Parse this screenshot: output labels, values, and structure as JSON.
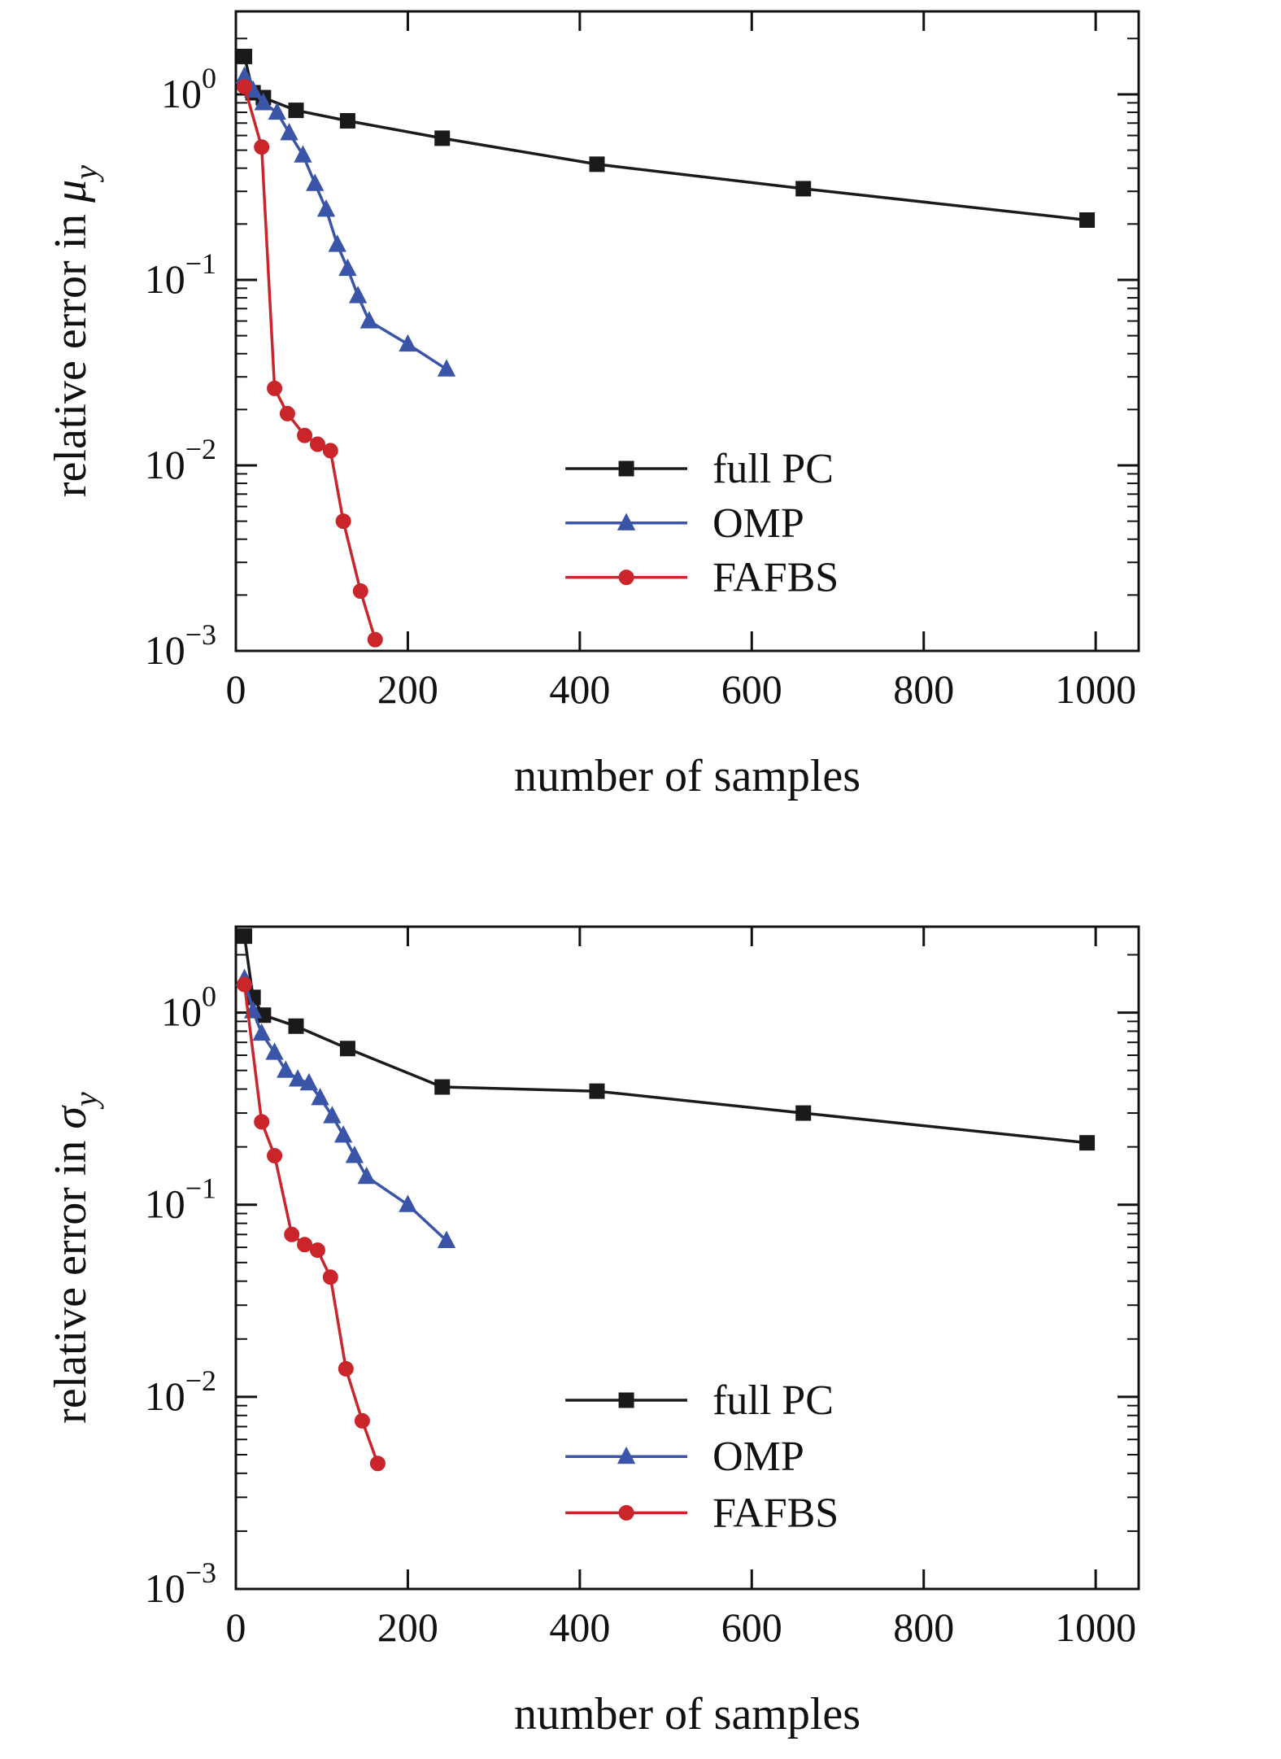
{
  "figure": {
    "background": "#ffffff",
    "axis_color": "#111111",
    "xlabel": "number of samples",
    "legend_entries": [
      "full PC",
      "OMP",
      "FAFBS"
    ],
    "series_colors": {
      "full_pc": "#1a1a1a",
      "omp": "#3a55a8",
      "fafbs": "#c9252b"
    }
  },
  "chart_data": [
    {
      "type": "line",
      "title": "",
      "xlabel": "number of samples",
      "ylabel": {
        "text": "relative error in ",
        "symbol": "μ",
        "subscript": "y"
      },
      "x_axis": {
        "lim": [
          0,
          1050
        ],
        "ticks": [
          0,
          200,
          400,
          600,
          800,
          1000
        ]
      },
      "y_axis": {
        "scale": "log",
        "lim": [
          0.001,
          2.8
        ],
        "major_ticks": [
          {
            "value": 1,
            "base": "10",
            "exp": "0"
          },
          {
            "value": 0.1,
            "base": "10",
            "exp": "−1"
          },
          {
            "value": 0.01,
            "base": "10",
            "exp": "−2"
          },
          {
            "value": 0.001,
            "base": "10",
            "exp": "−3"
          }
        ]
      },
      "grid": false,
      "legend": {
        "position": "inside-lower-right"
      },
      "series": [
        {
          "name": "full PC",
          "color": "#1a1a1a",
          "marker": "square",
          "points": [
            [
              10,
              1.6
            ],
            [
              20,
              1.02
            ],
            [
              32,
              0.96
            ],
            [
              70,
              0.82
            ],
            [
              130,
              0.72
            ],
            [
              240,
              0.58
            ],
            [
              420,
              0.42
            ],
            [
              660,
              0.31
            ],
            [
              990,
              0.21
            ]
          ]
        },
        {
          "name": "OMP",
          "color": "#3a55a8",
          "marker": "triangle",
          "points": [
            [
              10,
              1.25
            ],
            [
              20,
              1.05
            ],
            [
              32,
              0.9
            ],
            [
              48,
              0.8
            ],
            [
              62,
              0.62
            ],
            [
              78,
              0.47
            ],
            [
              92,
              0.33
            ],
            [
              105,
              0.24
            ],
            [
              118,
              0.155
            ],
            [
              130,
              0.115
            ],
            [
              142,
              0.082
            ],
            [
              155,
              0.06
            ],
            [
              200,
              0.045
            ],
            [
              245,
              0.033
            ]
          ]
        },
        {
          "name": "FAFBS",
          "color": "#c9252b",
          "marker": "circle",
          "points": [
            [
              10,
              1.1
            ],
            [
              30,
              0.52
            ],
            [
              45,
              0.026
            ],
            [
              60,
              0.019
            ],
            [
              80,
              0.0145
            ],
            [
              95,
              0.013
            ],
            [
              110,
              0.012
            ],
            [
              125,
              0.005
            ],
            [
              145,
              0.0021
            ],
            [
              162,
              0.00115
            ]
          ]
        }
      ]
    },
    {
      "type": "line",
      "title": "",
      "xlabel": "number of samples",
      "ylabel": {
        "text": "relative error in ",
        "symbol": "σ",
        "subscript": "y"
      },
      "x_axis": {
        "lim": [
          0,
          1050
        ],
        "ticks": [
          0,
          200,
          400,
          600,
          800,
          1000
        ]
      },
      "y_axis": {
        "scale": "log",
        "lim": [
          0.001,
          2.8
        ],
        "major_ticks": [
          {
            "value": 1,
            "base": "10",
            "exp": "0"
          },
          {
            "value": 0.1,
            "base": "10",
            "exp": "−1"
          },
          {
            "value": 0.01,
            "base": "10",
            "exp": "−2"
          },
          {
            "value": 0.001,
            "base": "10",
            "exp": "−3"
          }
        ]
      },
      "grid": false,
      "legend": {
        "position": "inside-lower-right"
      },
      "series": [
        {
          "name": "full PC",
          "color": "#1a1a1a",
          "marker": "square",
          "points": [
            [
              10,
              2.5
            ],
            [
              20,
              1.2
            ],
            [
              32,
              0.97
            ],
            [
              70,
              0.85
            ],
            [
              130,
              0.65
            ],
            [
              240,
              0.41
            ],
            [
              420,
              0.39
            ],
            [
              660,
              0.3
            ],
            [
              990,
              0.21
            ]
          ]
        },
        {
          "name": "OMP",
          "color": "#3a55a8",
          "marker": "triangle",
          "points": [
            [
              10,
              1.5
            ],
            [
              20,
              1.02
            ],
            [
              30,
              0.78
            ],
            [
              45,
              0.62
            ],
            [
              58,
              0.5
            ],
            [
              72,
              0.45
            ],
            [
              85,
              0.43
            ],
            [
              98,
              0.36
            ],
            [
              112,
              0.29
            ],
            [
              125,
              0.23
            ],
            [
              138,
              0.18
            ],
            [
              152,
              0.14
            ],
            [
              200,
              0.1
            ],
            [
              245,
              0.065
            ]
          ]
        },
        {
          "name": "FAFBS",
          "color": "#c9252b",
          "marker": "circle",
          "points": [
            [
              10,
              1.4
            ],
            [
              30,
              0.27
            ],
            [
              45,
              0.18
            ],
            [
              65,
              0.07
            ],
            [
              80,
              0.062
            ],
            [
              95,
              0.058
            ],
            [
              110,
              0.042
            ],
            [
              128,
              0.014
            ],
            [
              147,
              0.0075
            ],
            [
              165,
              0.0045
            ]
          ]
        }
      ]
    }
  ]
}
